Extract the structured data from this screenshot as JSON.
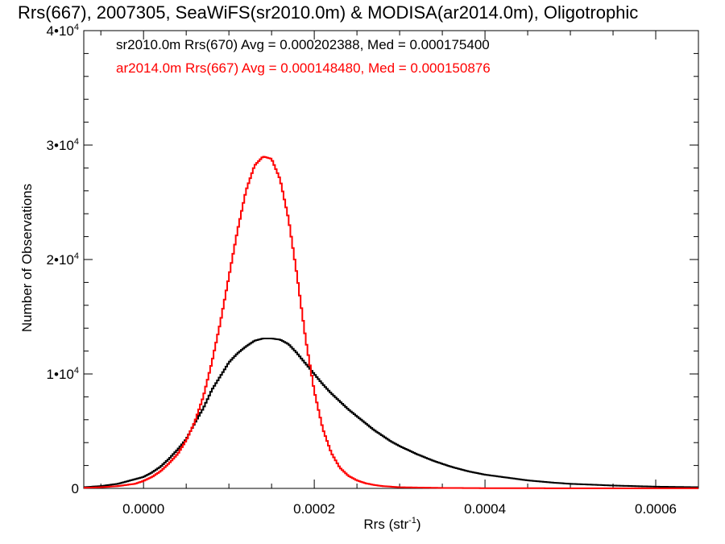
{
  "chart_data": {
    "type": "line",
    "title": "Rrs(667), 2007305, SeaWiFS(sr2010.0m) & MODISA(ar2014.0m), Oligotrophic",
    "xlabel": "Rrs (str",
    "xlabel_sup": "-1",
    "xlabel_close": ")",
    "ylabel": "Number of Observations",
    "xlim": [
      -7e-05,
      0.00065
    ],
    "ylim": [
      0,
      40000
    ],
    "xticks": [
      {
        "value": 0.0,
        "label": "0.0000"
      },
      {
        "value": 0.0002,
        "label": "0.0002"
      },
      {
        "value": 0.0004,
        "label": "0.0004"
      },
      {
        "value": 0.0006,
        "label": "0.0006"
      }
    ],
    "yticks": [
      {
        "value": 0,
        "base": "0",
        "sup": ""
      },
      {
        "value": 10000,
        "base": "1•10",
        "sup": "4"
      },
      {
        "value": 20000,
        "base": "2•10",
        "sup": "4"
      },
      {
        "value": 30000,
        "base": "3•10",
        "sup": "4"
      },
      {
        "value": 40000,
        "base": "4•10",
        "sup": "4"
      }
    ],
    "grid": false,
    "legend_position": "top-left",
    "series": [
      {
        "name": "sr2010.0m Rrs(670) Avg = 0.000202388, Med = 0.000175400",
        "color": "#000000",
        "points": [
          [
            -7e-05,
            100
          ],
          [
            -5e-05,
            200
          ],
          [
            -3e-05,
            400
          ],
          [
            -1e-05,
            800
          ],
          [
            0.0,
            1000
          ],
          [
            1e-05,
            1400
          ],
          [
            2e-05,
            1900
          ],
          [
            3e-05,
            2600
          ],
          [
            4e-05,
            3400
          ],
          [
            5e-05,
            4300
          ],
          [
            6e-05,
            5700
          ],
          [
            7e-05,
            7000
          ],
          [
            8e-05,
            8600
          ],
          [
            9e-05,
            9800
          ],
          [
            0.0001,
            11000
          ],
          [
            0.00011,
            11800
          ],
          [
            0.00012,
            12400
          ],
          [
            0.00013,
            12900
          ],
          [
            0.00014,
            13100
          ],
          [
            0.00015,
            13100
          ],
          [
            0.00016,
            13000
          ],
          [
            0.00017,
            12600
          ],
          [
            0.00018,
            11800
          ],
          [
            0.00019,
            10900
          ],
          [
            0.0002,
            10000
          ],
          [
            0.00021,
            9100
          ],
          [
            0.00022,
            8300
          ],
          [
            0.00023,
            7600
          ],
          [
            0.00024,
            6900
          ],
          [
            0.00025,
            6300
          ],
          [
            0.00026,
            5700
          ],
          [
            0.00027,
            5100
          ],
          [
            0.00028,
            4600
          ],
          [
            0.00029,
            4100
          ],
          [
            0.0003,
            3700
          ],
          [
            0.00032,
            3000
          ],
          [
            0.00034,
            2400
          ],
          [
            0.00036,
            1900
          ],
          [
            0.00038,
            1500
          ],
          [
            0.0004,
            1200
          ],
          [
            0.00042,
            1000
          ],
          [
            0.00045,
            700
          ],
          [
            0.00048,
            500
          ],
          [
            0.0005,
            400
          ],
          [
            0.00055,
            250
          ],
          [
            0.0006,
            150
          ],
          [
            0.00065,
            100
          ]
        ]
      },
      {
        "name": "ar2014.0m Rrs(667) Avg = 0.000148480, Med = 0.000150876",
        "color": "#ff0000",
        "points": [
          [
            -7e-05,
            50
          ],
          [
            -5e-05,
            100
          ],
          [
            -3e-05,
            200
          ],
          [
            -1e-05,
            400
          ],
          [
            0.0,
            650
          ],
          [
            1e-05,
            1000
          ],
          [
            2e-05,
            1500
          ],
          [
            3e-05,
            2200
          ],
          [
            4e-05,
            3000
          ],
          [
            5e-05,
            4200
          ],
          [
            6e-05,
            5800
          ],
          [
            7e-05,
            8000
          ],
          [
            8e-05,
            11000
          ],
          [
            9e-05,
            14500
          ],
          [
            0.0001,
            18500
          ],
          [
            0.00011,
            22500
          ],
          [
            0.00012,
            26000
          ],
          [
            0.00013,
            28200
          ],
          [
            0.00014,
            29000
          ],
          [
            0.00015,
            28800
          ],
          [
            0.00016,
            27000
          ],
          [
            0.00017,
            23500
          ],
          [
            0.00018,
            18500
          ],
          [
            0.00019,
            13000
          ],
          [
            0.0002,
            8500
          ],
          [
            0.00021,
            5200
          ],
          [
            0.00022,
            3100
          ],
          [
            0.00023,
            1800
          ],
          [
            0.00024,
            1100
          ],
          [
            0.00025,
            700
          ],
          [
            0.00026,
            450
          ],
          [
            0.00027,
            300
          ],
          [
            0.00028,
            200
          ],
          [
            0.0003,
            100
          ],
          [
            0.00035,
            40
          ],
          [
            0.0004,
            20
          ],
          [
            0.0005,
            10
          ],
          [
            0.00065,
            5
          ]
        ]
      }
    ]
  }
}
